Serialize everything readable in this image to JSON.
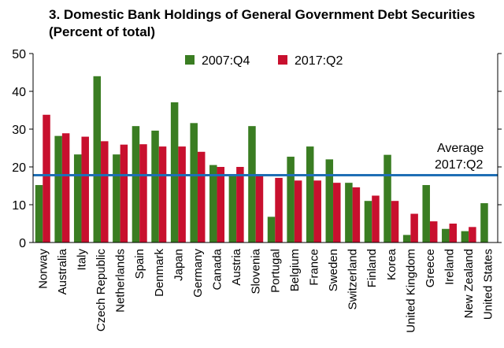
{
  "chart_data": {
    "type": "bar",
    "title": "3. Domestic Bank Holdings of General Government Debt Securities",
    "subtitle": "(Percent of total)",
    "categories": [
      "Norway",
      "Australia",
      "Italy",
      "Czech Republic",
      "Netherlands",
      "Spain",
      "Denmark",
      "Japan",
      "Germany",
      "Canada",
      "Austria",
      "Slovenia",
      "Portugal",
      "Belgium",
      "France",
      "Sweden",
      "Switzerland",
      "Finland",
      "Korea",
      "United Kingdom",
      "Greece",
      "Ireland",
      "New Zealand",
      "United States"
    ],
    "series": [
      {
        "name": "2007:Q4",
        "color": "#3a7d22",
        "values": [
          15.2,
          28.2,
          23.3,
          44.0,
          23.3,
          30.8,
          29.6,
          37.1,
          31.6,
          20.5,
          18.0,
          30.8,
          6.8,
          22.7,
          25.4,
          22.0,
          15.8,
          11.0,
          23.2,
          2.0,
          15.2,
          3.6,
          3.0,
          10.4
        ]
      },
      {
        "name": "2017:Q2",
        "color": "#c8102e",
        "values": [
          33.8,
          28.9,
          28.0,
          26.8,
          25.9,
          26.0,
          25.4,
          25.4,
          24.0,
          20.0,
          20.0,
          17.5,
          17.1,
          16.4,
          16.4,
          15.8,
          14.6,
          12.4,
          11.0,
          7.6,
          5.6,
          5.0,
          4.1,
          null
        ]
      }
    ],
    "ylim": [
      0,
      50
    ],
    "yticks": [
      0,
      10,
      20,
      30,
      40,
      50
    ],
    "grid": false,
    "legend": "top-center",
    "reference_line": {
      "label_line1": "Average",
      "label_line2": "2017:Q2",
      "value": 17.8,
      "color": "#1f6fb5"
    }
  }
}
